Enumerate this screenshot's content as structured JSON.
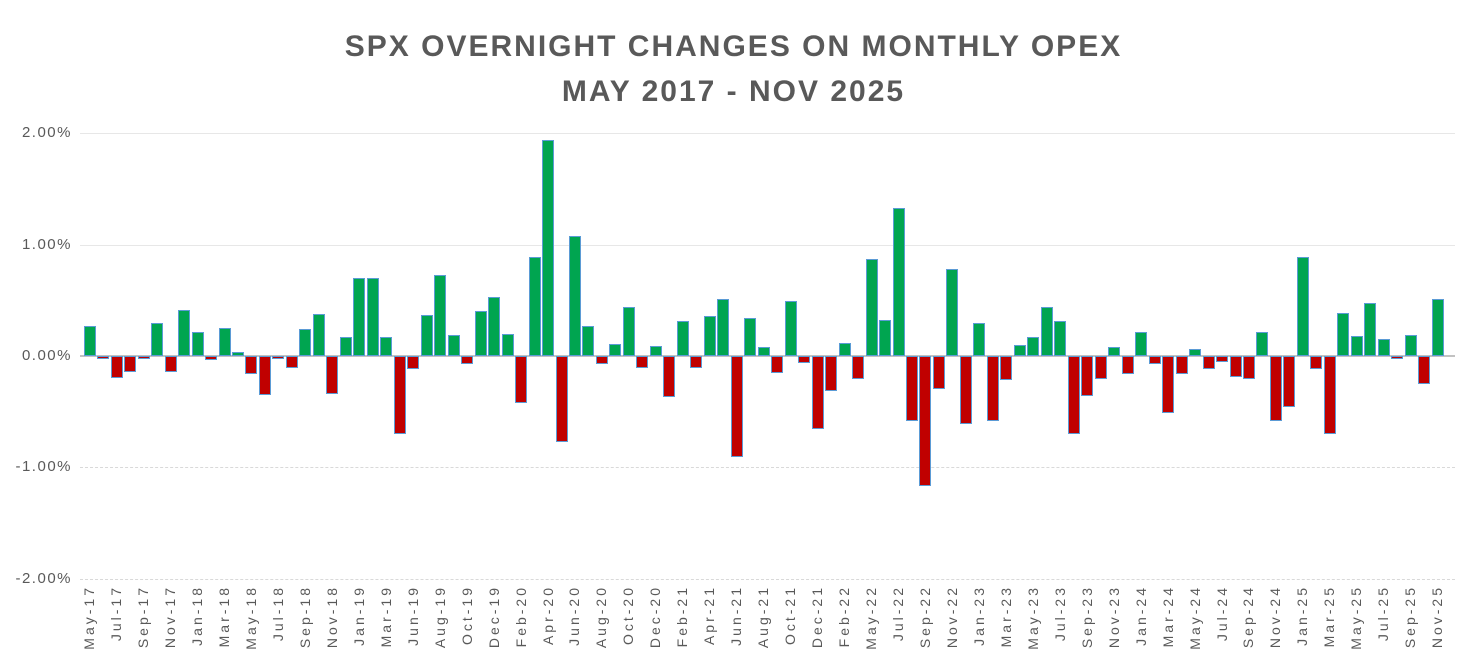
{
  "title": {
    "line1": "SPX OVERNIGHT CHANGES ON MONTHLY OPEX",
    "line2": "MAY 2017 - NOV 2025"
  },
  "y_axis": {
    "ticks": [
      {
        "label": "2.00%",
        "value": 2
      },
      {
        "label": "1.00%",
        "value": 1
      },
      {
        "label": "0.00%",
        "value": 0
      },
      {
        "label": "-1.00%",
        "value": -1
      },
      {
        "label": "-2.00%",
        "value": -2
      }
    ]
  },
  "colors": {
    "positive_bar": "#00A550",
    "negative_bar": "#C00000",
    "bar_border": "#5B9BD5",
    "axis_line": "#C2C2C2",
    "text": "#595959"
  },
  "chart_data": {
    "type": "bar",
    "title": "SPX OVERNIGHT CHANGES ON MONTHLY OPEX MAY 2017 - NOV 2025",
    "xlabel": "",
    "ylabel": "",
    "ylim": [
      -2,
      2
    ],
    "grid": "horizontal",
    "legend": "none",
    "x_tick_every": 2,
    "categories": [
      "May-17",
      "Jun-17",
      "Jul-17",
      "Aug-17",
      "Sep-17",
      "Oct-17",
      "Nov-17",
      "Dec-17",
      "Jan-18",
      "Feb-18",
      "Mar-18",
      "Apr-18",
      "May-18",
      "Jun-18",
      "Jul-18",
      "Aug-18",
      "Sep-18",
      "Oct-18",
      "Nov-18",
      "Dec-18",
      "Jan-19",
      "Feb-19",
      "Mar-19",
      "Apr-19",
      "Jun-19",
      "Jul-19",
      "Aug-19",
      "Sep-19",
      "Oct-19",
      "Nov-19",
      "Dec-19",
      "Jan-20",
      "Feb-20",
      "Mar-20",
      "Apr-20",
      "May-20",
      "Jun-20",
      "Jul-20",
      "Aug-20",
      "Sep-20",
      "Oct-20",
      "Nov-20",
      "Dec-20",
      "Jan-21",
      "Feb-21",
      "Mar-21",
      "Apr-21",
      "May-21",
      "Jun-21",
      "Jul-21",
      "Aug-21",
      "Sep-21",
      "Oct-21",
      "Nov-21",
      "Dec-21",
      "Jan-22",
      "Feb-22",
      "Apr-22",
      "May-22",
      "Jun-22",
      "Jul-22",
      "Aug-22",
      "Sep-22",
      "Oct-22",
      "Nov-22",
      "Dec-22",
      "Jan-23",
      "Feb-23",
      "Mar-23",
      "Apr-23",
      "May-23",
      "Jun-23",
      "Jul-23",
      "Aug-23",
      "Sep-23",
      "Oct-23",
      "Nov-23",
      "Dec-23",
      "Jan-24",
      "Feb-24",
      "Mar-24",
      "Apr-24",
      "May-24",
      "Jun-24",
      "Jul-24",
      "Aug-24",
      "Sep-24",
      "Oct-24",
      "Nov-24",
      "Dec-24",
      "Jan-25",
      "Feb-25",
      "Mar-25",
      "Apr-25",
      "May-25",
      "Jun-25",
      "Jul-25",
      "Aug-25",
      "Sep-25",
      "Oct-25",
      "Nov-25"
    ],
    "values": [
      0.27,
      -0.02,
      -0.2,
      -0.14,
      -0.03,
      0.3,
      -0.14,
      0.41,
      0.22,
      -0.04,
      0.25,
      0.04,
      -0.16,
      -0.35,
      -0.02,
      -0.11,
      0.24,
      0.38,
      -0.34,
      0.17,
      0.7,
      0.7,
      0.17,
      -0.7,
      -0.12,
      0.37,
      0.73,
      0.19,
      -0.07,
      0.4,
      0.53,
      0.2,
      -0.42,
      0.89,
      1.94,
      -0.77,
      1.08,
      0.27,
      -0.07,
      0.11,
      0.44,
      -0.11,
      0.09,
      -0.37,
      0.31,
      -0.11,
      0.36,
      0.51,
      -0.91,
      0.34,
      0.08,
      -0.15,
      0.49,
      -0.06,
      -0.66,
      -0.31,
      0.12,
      -0.21,
      0.87,
      0.32,
      1.33,
      -0.58,
      -1.17,
      -0.3,
      0.78,
      -0.61,
      0.3,
      -0.58,
      -0.22,
      0.1,
      0.17,
      0.44,
      0.31,
      -0.7,
      -0.36,
      -0.21,
      0.08,
      -0.16,
      0.22,
      -0.07,
      -0.51,
      -0.16,
      0.06,
      -0.12,
      -0.05,
      -0.19,
      -0.21,
      0.22,
      -0.58,
      -0.46,
      0.89,
      -0.12,
      -0.7,
      0.39,
      0.18,
      0.48,
      0.15,
      -0.02,
      0.19,
      -0.25,
      0.51
    ]
  }
}
